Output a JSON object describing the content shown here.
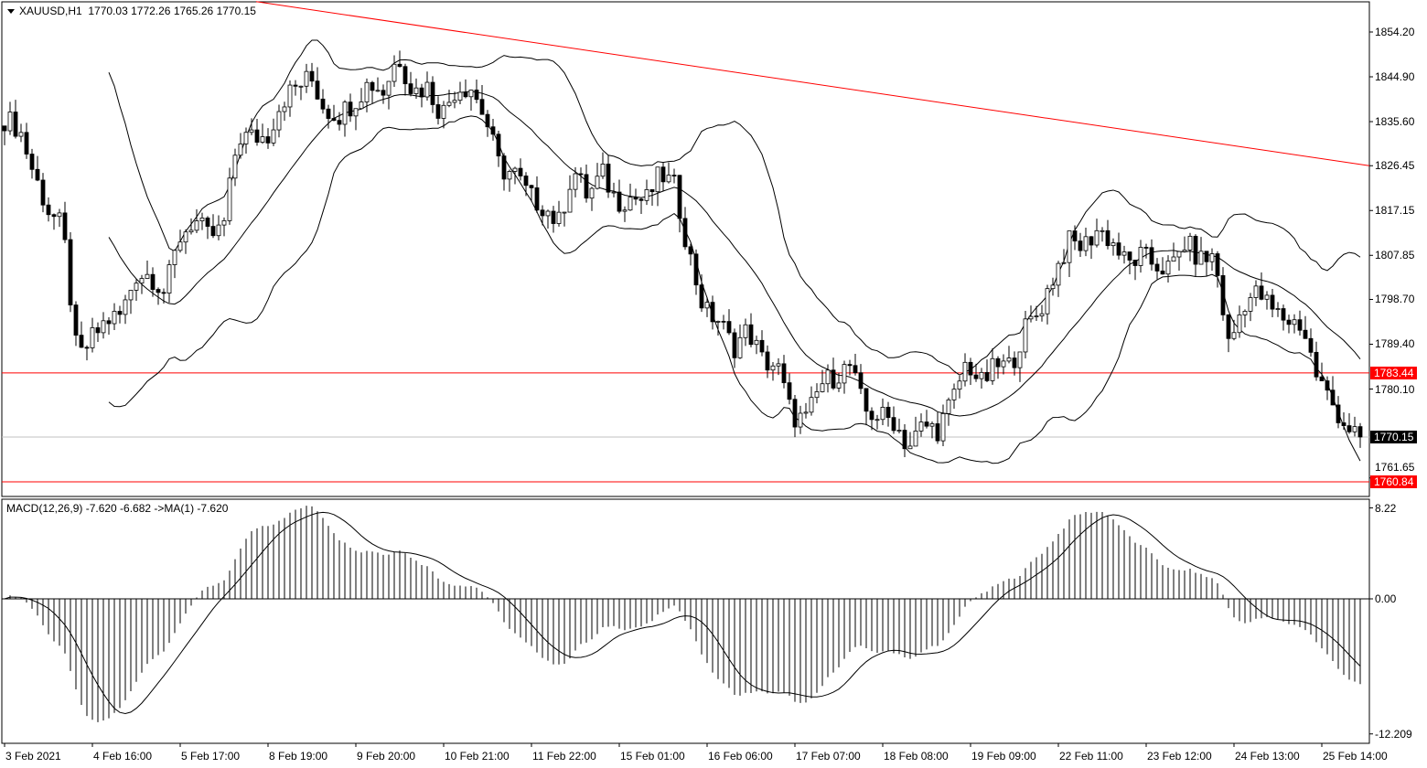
{
  "symbol_header": {
    "symbol": "XAUUSD,H1",
    "open": "1770.03",
    "high": "1772.26",
    "low": "1765.26",
    "close": "1770.15"
  },
  "macd_header": {
    "label": "MACD(12,26,9) -7.620 -6.682  ->MA(1) -7.620"
  },
  "colors": {
    "background": "#ffffff",
    "candles": "#000000",
    "levels": "#ff0000",
    "current_price": "#c0c0c0"
  },
  "chart_data": {
    "type": "candlestick",
    "price_axis_ticks": [
      "1854.20",
      "1844.90",
      "1835.60",
      "1826.45",
      "1817.15",
      "1807.85",
      "1798.70",
      "1789.40",
      "1780.10",
      "1761.65"
    ],
    "time_axis_ticks": [
      "3 Feb 2021",
      "4 Feb 16:00",
      "5 Feb 17:00",
      "8 Feb 19:00",
      "9 Feb 20:00",
      "10 Feb 21:00",
      "11 Feb 22:00",
      "15 Feb 01:00",
      "16 Feb 06:00",
      "17 Feb 07:00",
      "18 Feb 08:00",
      "19 Feb 09:00",
      "22 Feb 11:00",
      "23 Feb 12:00",
      "24 Feb 13:00",
      "25 Feb 14:00"
    ],
    "ylim": [
      1758.5,
      1860.5
    ],
    "approx_closes": [
      1836.2,
      1834.3,
      1824.8,
      1817.2,
      1813.4,
      1785.9,
      1790.6,
      1794.4,
      1795.4,
      1803.9,
      1803.9,
      1800.1,
      1811.5,
      1815.3,
      1811.5,
      1813.4,
      1832.4,
      1832.4,
      1832.4,
      1840.0,
      1842.8,
      1844.7,
      1838.1,
      1837.1,
      1840.0,
      1843.8,
      1841.9,
      1849.5,
      1841.9,
      1842.8,
      1837.1,
      1842.8,
      1842.8,
      1836.2,
      1825.7,
      1824.8,
      1820.0,
      1818.1,
      1814.3,
      1825.7,
      1820.0,
      1824.8,
      1819.1,
      1820.0,
      1819.1,
      1824.8,
      1821.9,
      1807.7,
      1796.3,
      1794.4,
      1788.7,
      1792.5,
      1785.9,
      1784.9,
      1774.5,
      1773.6,
      1781.1,
      1783.0,
      1784.9,
      1775.5,
      1774.5,
      1773.6,
      1767.9,
      1772.6,
      1771.7,
      1777.4,
      1785.9,
      1781.1,
      1784.9,
      1784.9,
      1792.5,
      1796.3,
      1803.9,
      1810.6,
      1809.6,
      1813.4,
      1810.6,
      1805.8,
      1807.7,
      1805.8,
      1804.9,
      1810.6,
      1806.8,
      1807.7,
      1788.7,
      1798.2,
      1800.1,
      1796.3,
      1794.4,
      1793.5,
      1783.0,
      1777.4,
      1772.6,
      1770.15
    ],
    "indicators": [
      "Bollinger Bands(20,2)",
      "MACD(12,26,9)"
    ],
    "horizontal_levels": [
      {
        "price": 1783.44,
        "label": "1783.44"
      },
      {
        "price": 1760.84,
        "label": "1760.84"
      }
    ],
    "current_price": {
      "price": 1770.15,
      "label": "1770.15"
    },
    "trendline": {
      "start_price": 1860.5,
      "end_price": 1826.45
    },
    "macd_axis_ticks": [
      "8.22",
      "0.00",
      "-12.209"
    ],
    "macd_ylim": [
      -12.209,
      8.22
    ]
  }
}
